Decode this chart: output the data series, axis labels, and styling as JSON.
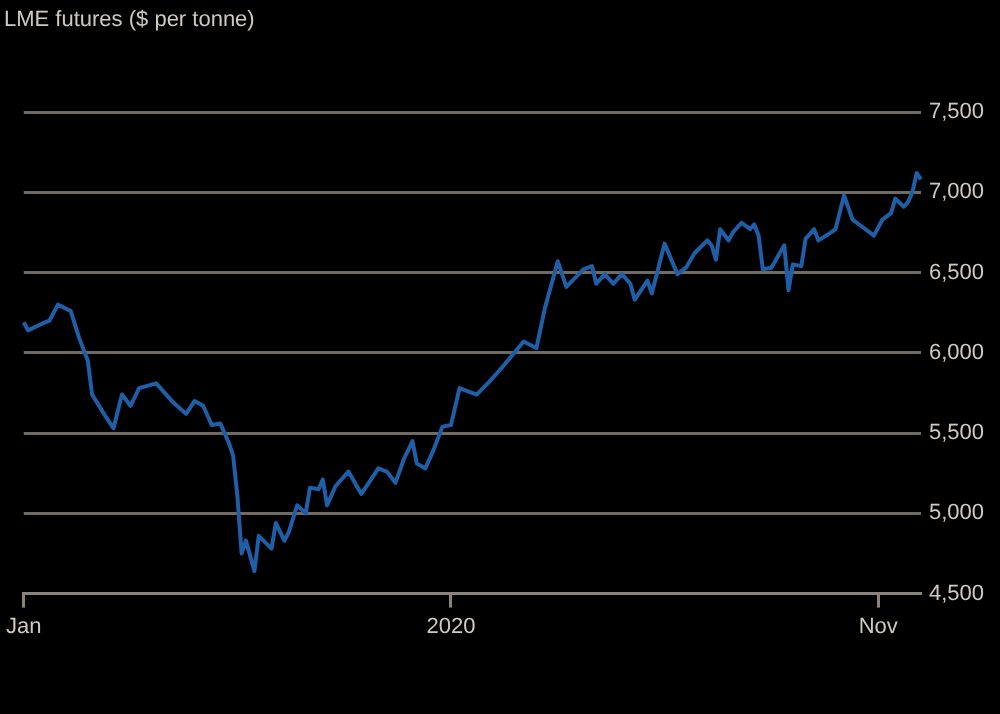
{
  "chart_data": {
    "type": "line",
    "ylabel": "LME futures ($ per tonne)",
    "categories": [
      "Jan",
      null,
      null,
      null,
      null,
      null,
      null,
      null,
      null,
      null,
      null,
      null,
      null,
      null,
      null,
      null,
      null,
      null,
      null,
      null,
      null,
      null,
      null,
      null,
      null,
      null,
      null,
      null,
      null,
      null,
      null,
      null,
      null,
      null,
      null,
      null,
      null,
      null,
      null,
      null,
      null,
      null,
      null,
      null,
      null,
      null,
      null,
      null,
      null,
      null,
      null,
      null,
      null,
      null,
      null,
      null,
      null,
      null,
      null,
      null,
      null,
      null,
      null,
      null,
      null,
      null,
      null,
      null,
      null,
      null,
      null,
      null,
      null,
      null,
      null,
      null,
      null,
      null,
      null,
      null,
      null,
      null,
      null,
      null,
      null,
      null,
      null,
      null,
      null,
      null,
      null,
      null,
      null,
      null,
      null,
      null,
      null,
      null,
      null,
      null,
      "2020",
      null,
      null,
      null,
      null,
      null,
      null,
      null,
      null,
      null,
      null,
      null,
      null,
      null,
      null,
      null,
      null,
      null,
      null,
      null,
      null,
      null,
      null,
      null,
      null,
      null,
      null,
      null,
      null,
      null,
      null,
      null,
      null,
      null,
      null,
      null,
      null,
      null,
      null,
      null,
      null,
      null,
      null,
      null,
      null,
      null,
      null,
      null,
      null,
      null,
      null,
      null,
      null,
      null,
      null,
      null,
      null,
      null,
      null,
      null,
      null,
      null,
      null,
      null,
      null,
      null,
      null,
      null,
      null,
      null,
      null,
      null,
      null,
      null,
      null,
      null,
      null,
      null,
      null,
      null,
      null,
      null,
      null,
      null,
      null,
      null,
      null,
      null,
      null,
      null,
      null,
      null,
      null,
      null,
      null,
      null,
      null,
      null,
      null,
      null,
      "Nov",
      null,
      null,
      null,
      null,
      null,
      null,
      null,
      null,
      null,
      null
    ],
    "ylim": [
      4500,
      7500
    ],
    "yticks": [
      {
        "value": 4500,
        "label": "4,500"
      },
      {
        "value": 5000,
        "label": "5,000"
      },
      {
        "value": 5500,
        "label": "5,500"
      },
      {
        "value": 6000,
        "label": "6,000"
      },
      {
        "value": 6500,
        "label": "6,500"
      },
      {
        "value": 7000,
        "label": "7,000"
      },
      {
        "value": 7500,
        "label": "7,500"
      }
    ],
    "grid": "y",
    "marker": "none",
    "line_style": "solid",
    "series": [
      {
        "color": "#1f5fa8",
        "values": [
          6190,
          6140,
          null,
          null,
          null,
          6190,
          6200,
          null,
          6300,
          null,
          null,
          6260,
          null,
          6090,
          null,
          5950,
          5740,
          null,
          null,
          5610,
          null,
          5530,
          null,
          5740,
          null,
          5670,
          null,
          5780,
          null,
          null,
          null,
          5810,
          null,
          5750,
          null,
          5690,
          null,
          null,
          5620,
          null,
          5700,
          null,
          5670,
          null,
          5550,
          null,
          5560,
          null,
          5440,
          5360,
          5110,
          4750,
          4830,
          null,
          4640,
          4860,
          null,
          null,
          4780,
          4940,
          null,
          4830,
          4880,
          null,
          5050,
          null,
          5000,
          5160,
          null,
          5150,
          5210,
          5050,
          null,
          5170,
          null,
          null,
          5260,
          null,
          null,
          5120,
          null,
          null,
          null,
          5280,
          null,
          5260,
          null,
          5190,
          null,
          5340,
          null,
          5450,
          5310,
          null,
          5280,
          null,
          5400,
          null,
          5540,
          null,
          5550,
          null,
          5780,
          null,
          null,
          null,
          5740,
          null,
          null,
          5820,
          null,
          null,
          5910,
          null,
          null,
          null,
          null,
          6070,
          null,
          null,
          6030,
          null,
          6280,
          null,
          null,
          6570,
          null,
          6410,
          null,
          null,
          null,
          6520,
          null,
          6540,
          6430,
          null,
          6490,
          null,
          6430,
          null,
          6490,
          null,
          6430,
          6330,
          null,
          6410,
          6450,
          6370,
          null,
          null,
          6680,
          null,
          null,
          6490,
          null,
          6530,
          null,
          6620,
          null,
          null,
          6700,
          6670,
          6580,
          6770,
          null,
          6700,
          6750,
          null,
          6810,
          null,
          6770,
          6800,
          6730,
          6520,
          null,
          6530,
          null,
          null,
          6670,
          6390,
          6550,
          null,
          6540,
          6710,
          null,
          6770,
          6700,
          null,
          null,
          6750,
          6770,
          null,
          6980,
          null,
          6830,
          null,
          6790,
          null,
          null,
          6730,
          null,
          6830,
          null,
          6870,
          6960,
          null,
          6910,
          6940,
          7000,
          7120,
          7080
        ]
      }
    ]
  }
}
